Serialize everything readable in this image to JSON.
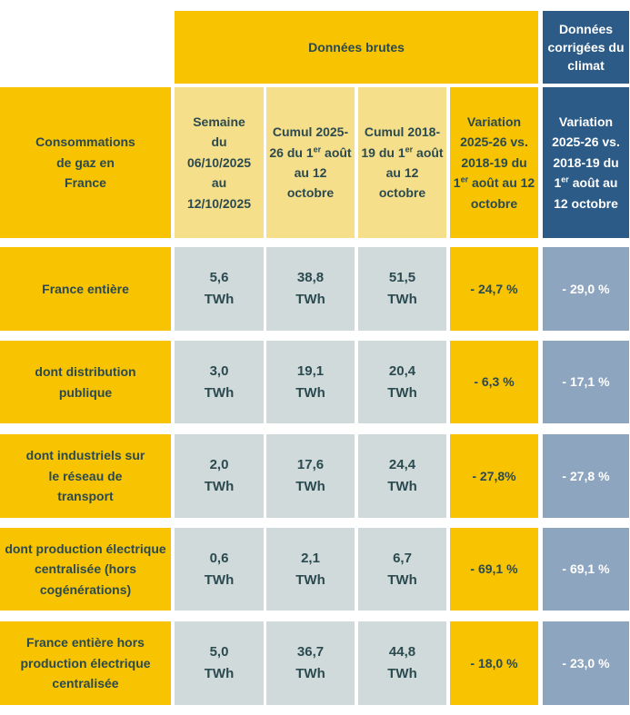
{
  "table": {
    "top_headers": [
      "Données brutes",
      "Données corrigées du climat"
    ],
    "corner": "Consommations de gaz en France",
    "headers": [
      {
        "before": "Semaine du 06/10/2025 au 12/10/2025"
      },
      {
        "before": "Cumul 2025-26 du 1",
        "sup": "er",
        "after": " août au 12 octobre"
      },
      {
        "before": "Cumul 2018-19 du 1",
        "sup": "er",
        "after": " août au 12 octobre"
      },
      {
        "before": "Variation 2025-26 vs. 2018-19 du 1",
        "sup": "er",
        "after": " août au 12 octobre"
      },
      {
        "before": "Variation 2025-26 vs. 2018-19 du 1",
        "sup": "er",
        "after": " août au 12 octobre"
      }
    ],
    "rows": [
      [
        "France entière",
        "5,6 TWh",
        "38,8 TWh",
        "51,5 TWh",
        "- 24,7 %",
        "- 29,0 %"
      ],
      [
        "dont distribution publique",
        "3,0 TWh",
        "19,1 TWh",
        "20,4 TWh",
        "- 6,3 %",
        "- 17,1 %"
      ],
      [
        "dont industriels sur le réseau de transport",
        "2,0 TWh",
        "17,6 TWh",
        "24,4 TWh",
        "- 27,8%",
        "- 27,8 %"
      ],
      [
        "dont production électrique centralisée (hors cogénérations)",
        "0,6 TWh",
        "2,1 TWh",
        "6,7 TWh",
        "- 69,1 %",
        "- 69,1 %"
      ],
      [
        "France entière hors production électrique centralisée",
        "5,0 TWh",
        "36,7 TWh",
        "44,8 TWh",
        "- 18,0 %",
        "- 23,0 %"
      ]
    ]
  }
}
